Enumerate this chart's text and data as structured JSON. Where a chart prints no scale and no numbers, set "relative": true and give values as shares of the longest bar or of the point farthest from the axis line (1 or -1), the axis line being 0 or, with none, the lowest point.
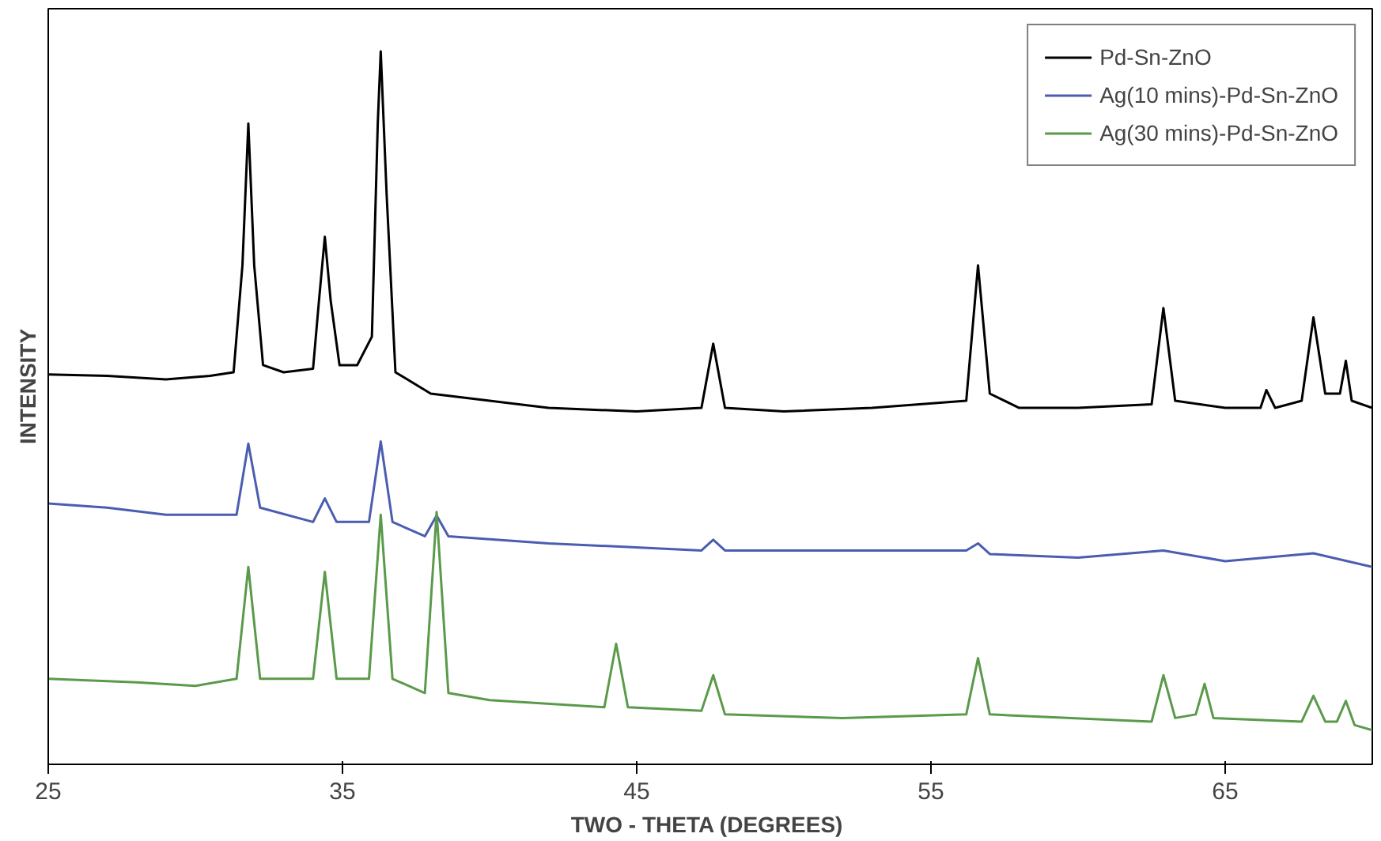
{
  "chart_data": {
    "type": "line",
    "relative": true,
    "xlabel": "TWO - THETA  (DEGREES)",
    "ylabel": "INTENSITY",
    "xlim": [
      25,
      70
    ],
    "xticks": [
      25,
      35,
      45,
      55,
      65
    ],
    "grid": false,
    "legend": "top right",
    "marker": "none",
    "line_style": "solid",
    "series": [
      {
        "name": "Pd-Sn-ZnO",
        "color": "#000000",
        "x": [
          25,
          27,
          29,
          30.5,
          31.3,
          31.6,
          31.8,
          32.0,
          32.3,
          33,
          34,
          34.2,
          34.4,
          34.6,
          34.9,
          35.5,
          36.0,
          36.2,
          36.3,
          36.5,
          36.8,
          38,
          40,
          42,
          45,
          47.2,
          47.6,
          48.0,
          50,
          53,
          56.2,
          56.6,
          57.0,
          58,
          60,
          62.5,
          62.9,
          63.3,
          65,
          66.2,
          66.4,
          66.7,
          67.6,
          68.0,
          68.4,
          68.9,
          69.1,
          69.3,
          70
        ],
        "values": [
          0.547,
          0.545,
          0.54,
          0.545,
          0.55,
          0.7,
          0.899,
          0.7,
          0.56,
          0.55,
          0.555,
          0.65,
          0.74,
          0.65,
          0.56,
          0.56,
          0.6,
          0.9,
          1.0,
          0.8,
          0.55,
          0.52,
          0.51,
          0.5,
          0.495,
          0.5,
          0.59,
          0.5,
          0.495,
          0.5,
          0.51,
          0.7,
          0.52,
          0.5,
          0.5,
          0.505,
          0.64,
          0.51,
          0.5,
          0.5,
          0.525,
          0.5,
          0.51,
          0.627,
          0.52,
          0.52,
          0.566,
          0.51,
          0.5
        ]
      },
      {
        "name": "Ag(10 mins)-Pd-Sn-ZnO",
        "color": "#4a5db0",
        "x": [
          25,
          27,
          29,
          31.4,
          31.8,
          32.2,
          34,
          34.4,
          34.8,
          35.9,
          36.3,
          36.7,
          37.8,
          38.2,
          38.6,
          42,
          47.2,
          47.6,
          48,
          50,
          56.2,
          56.6,
          57,
          60,
          62.9,
          65,
          68,
          70
        ],
        "values": [
          0.366,
          0.36,
          0.35,
          0.35,
          0.45,
          0.36,
          0.34,
          0.373,
          0.34,
          0.34,
          0.453,
          0.34,
          0.32,
          0.349,
          0.32,
          0.31,
          0.3,
          0.315,
          0.3,
          0.3,
          0.3,
          0.31,
          0.295,
          0.29,
          0.3,
          0.285,
          0.296,
          0.277
        ]
      },
      {
        "name": "Ag(30 mins)-Pd-Sn-ZnO",
        "color": "#5a9a4a",
        "x": [
          25,
          28,
          30,
          31.4,
          31.8,
          32.2,
          34,
          34.4,
          34.8,
          35.9,
          36.3,
          36.7,
          37.8,
          38.2,
          38.6,
          40,
          43.9,
          44.3,
          44.7,
          47.2,
          47.6,
          48,
          52,
          56.2,
          56.6,
          57,
          62.5,
          62.9,
          63.3,
          64.0,
          64.3,
          64.6,
          67.6,
          68,
          68.4,
          68.8,
          69.1,
          69.4,
          70
        ],
        "values": [
          0.12,
          0.115,
          0.11,
          0.12,
          0.277,
          0.12,
          0.12,
          0.27,
          0.12,
          0.12,
          0.35,
          0.12,
          0.1,
          0.354,
          0.1,
          0.09,
          0.08,
          0.169,
          0.08,
          0.075,
          0.125,
          0.07,
          0.065,
          0.07,
          0.149,
          0.07,
          0.06,
          0.125,
          0.065,
          0.07,
          0.113,
          0.065,
          0.06,
          0.096,
          0.06,
          0.06,
          0.089,
          0.055,
          0.048
        ]
      }
    ]
  }
}
